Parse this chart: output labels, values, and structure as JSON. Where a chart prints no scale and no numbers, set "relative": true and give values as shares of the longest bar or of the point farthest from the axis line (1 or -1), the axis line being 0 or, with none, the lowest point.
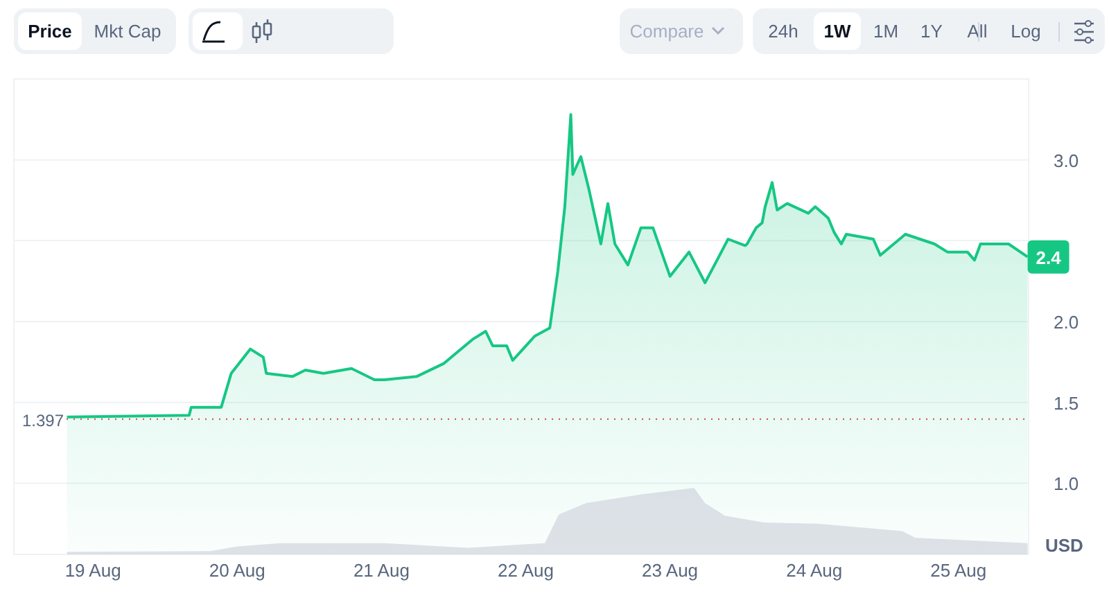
{
  "chart_data": [
    {
      "type": "area",
      "ylabel": "USD",
      "x": [
        "--08-18T19:40",
        "--08-19T16:00",
        "--08-19T16:20",
        "--08-19T21:20",
        "--08-19T23:00",
        "--08-20T02:10",
        "--08-20T04:20",
        "--08-20T04:50",
        "--08-20T09:10",
        "--08-20T11:20",
        "--08-20T14:20",
        "--08-20T19:00",
        "--08-20T22:50",
        "--08-21T00:30",
        "--08-21T05:50",
        "--08-21T10:20",
        "--08-21T15:10",
        "--08-21T17:20",
        "--08-21T18:30",
        "--08-21T20:50",
        "--08-21T21:50",
        "--08-22T01:30",
        "--08-22T04:00",
        "--08-22T05:20",
        "--08-22T06:30",
        "--08-22T07:30",
        "--08-22T07:50",
        "--08-22T09:10",
        "--08-22T10:30",
        "--08-22T12:30",
        "--08-22T13:40",
        "--08-22T14:50",
        "--08-22T17:00",
        "--08-22T19:10",
        "--08-22T21:10",
        "--08-23T00:00",
        "--08-23T03:10",
        "--08-23T05:50",
        "--08-23T07:50",
        "--08-23T09:40",
        "--08-23T12:30",
        "--08-23T12:50",
        "--08-23T14:20",
        "--08-23T15:20",
        "--08-23T15:50",
        "--08-23T17:00",
        "--08-23T17:50",
        "--08-23T19:30",
        "--08-23T23:00",
        "--08-24T00:10",
        "--08-24T02:20",
        "--08-24T03:20",
        "--08-24T04:30",
        "--08-24T05:20",
        "--08-24T09:50",
        "--08-24T11:00",
        "--08-24T15:10",
        "--08-24T20:00",
        "--08-24T22:10",
        "--08-25T01:30",
        "--08-25T02:40",
        "--08-25T03:40",
        "--08-25T08:20",
        "--08-25T11:30"
      ],
      "series": [
        {
          "color": "#16c784",
          "values": [
            1.41,
            1.42,
            1.47,
            1.47,
            1.68,
            1.83,
            1.78,
            1.68,
            1.66,
            1.7,
            1.68,
            1.71,
            1.64,
            1.64,
            1.66,
            1.74,
            1.89,
            1.94,
            1.85,
            1.85,
            1.76,
            1.91,
            1.96,
            2.31,
            2.71,
            3.28,
            2.91,
            3.02,
            2.82,
            2.48,
            2.73,
            2.48,
            2.35,
            2.58,
            2.58,
            2.28,
            2.43,
            2.24,
            2.38,
            2.51,
            2.47,
            2.48,
            2.58,
            2.61,
            2.71,
            2.86,
            2.69,
            2.73,
            2.67,
            2.71,
            2.64,
            2.55,
            2.48,
            2.54,
            2.51,
            2.41,
            2.54,
            2.48,
            2.43,
            2.43,
            2.38,
            2.48,
            2.48,
            2.4
          ]
        }
      ],
      "xlim": [
        "--08-18T10:50",
        "--08-25T11:40"
      ],
      "ylim": [
        0.56,
        3.5
      ],
      "yticks": [
        {
          "value": 1,
          "label": "1.0"
        },
        1.5,
        {
          "value": 2,
          "label": "2.0"
        },
        {
          "value": 2.5,
          "label": null
        },
        {
          "value": 3,
          "label": "3.0"
        }
      ],
      "tick_labels": "y",
      "grid": "y",
      "ref_lines": [
        {
          "axis": "y",
          "value": 1.397,
          "label": "1.397",
          "color": "#ea3943",
          "line_style": "dotted"
        }
      ],
      "annotations": [
        "Price",
        "Mkt Cap",
        "Compare",
        "24h",
        "1W",
        "1M",
        "1Y",
        "All",
        "Log",
        {
          "text": "2.4",
          "x": "--08-25T11:30",
          "y": 2.4
        }
      ]
    },
    {
      "type": "area",
      "relative": true,
      "tick_labels": "x",
      "x": [
        "--08-18T19:40",
        "--08-19T19:30",
        "--08-20T00:00",
        "--08-20T07:10",
        "--08-20T19:10",
        "--08-21T00:30",
        "--08-21T14:20",
        "--08-22T03:10",
        "--08-22T05:30",
        "--08-22T10:00",
        "--08-22T19:10",
        "--08-23T02:10",
        "--08-23T04:00",
        "--08-23T05:50",
        "--08-23T09:10",
        "--08-23T15:40",
        "--08-24T00:40",
        "--08-24T14:40",
        "--08-24T16:50",
        "--08-25T11:30"
      ],
      "xlim": [
        "--08-18T10:50",
        "--08-25T11:40"
      ],
      "xticks": [
        {
          "value": "--08-19",
          "label": "19 Aug"
        },
        {
          "value": "--08-20",
          "label": "20 Aug"
        },
        {
          "value": "--08-21",
          "label": "21 Aug"
        },
        {
          "value": "--08-22",
          "label": "22 Aug"
        },
        {
          "value": "--08-23",
          "label": "23 Aug"
        },
        {
          "value": "--08-24",
          "label": "24 Aug"
        },
        {
          "value": "--08-25",
          "label": "25 Aug"
        }
      ],
      "series": [
        {
          "color": "#c9ced8",
          "values": [
            0.04,
            0.05,
            0.12,
            0.17,
            0.17,
            0.17,
            0.1,
            0.17,
            0.6,
            0.77,
            0.9,
            0.98,
            1,
            0.77,
            0.58,
            0.48,
            0.46,
            0.35,
            0.25,
            0.17
          ]
        }
      ]
    }
  ]
}
